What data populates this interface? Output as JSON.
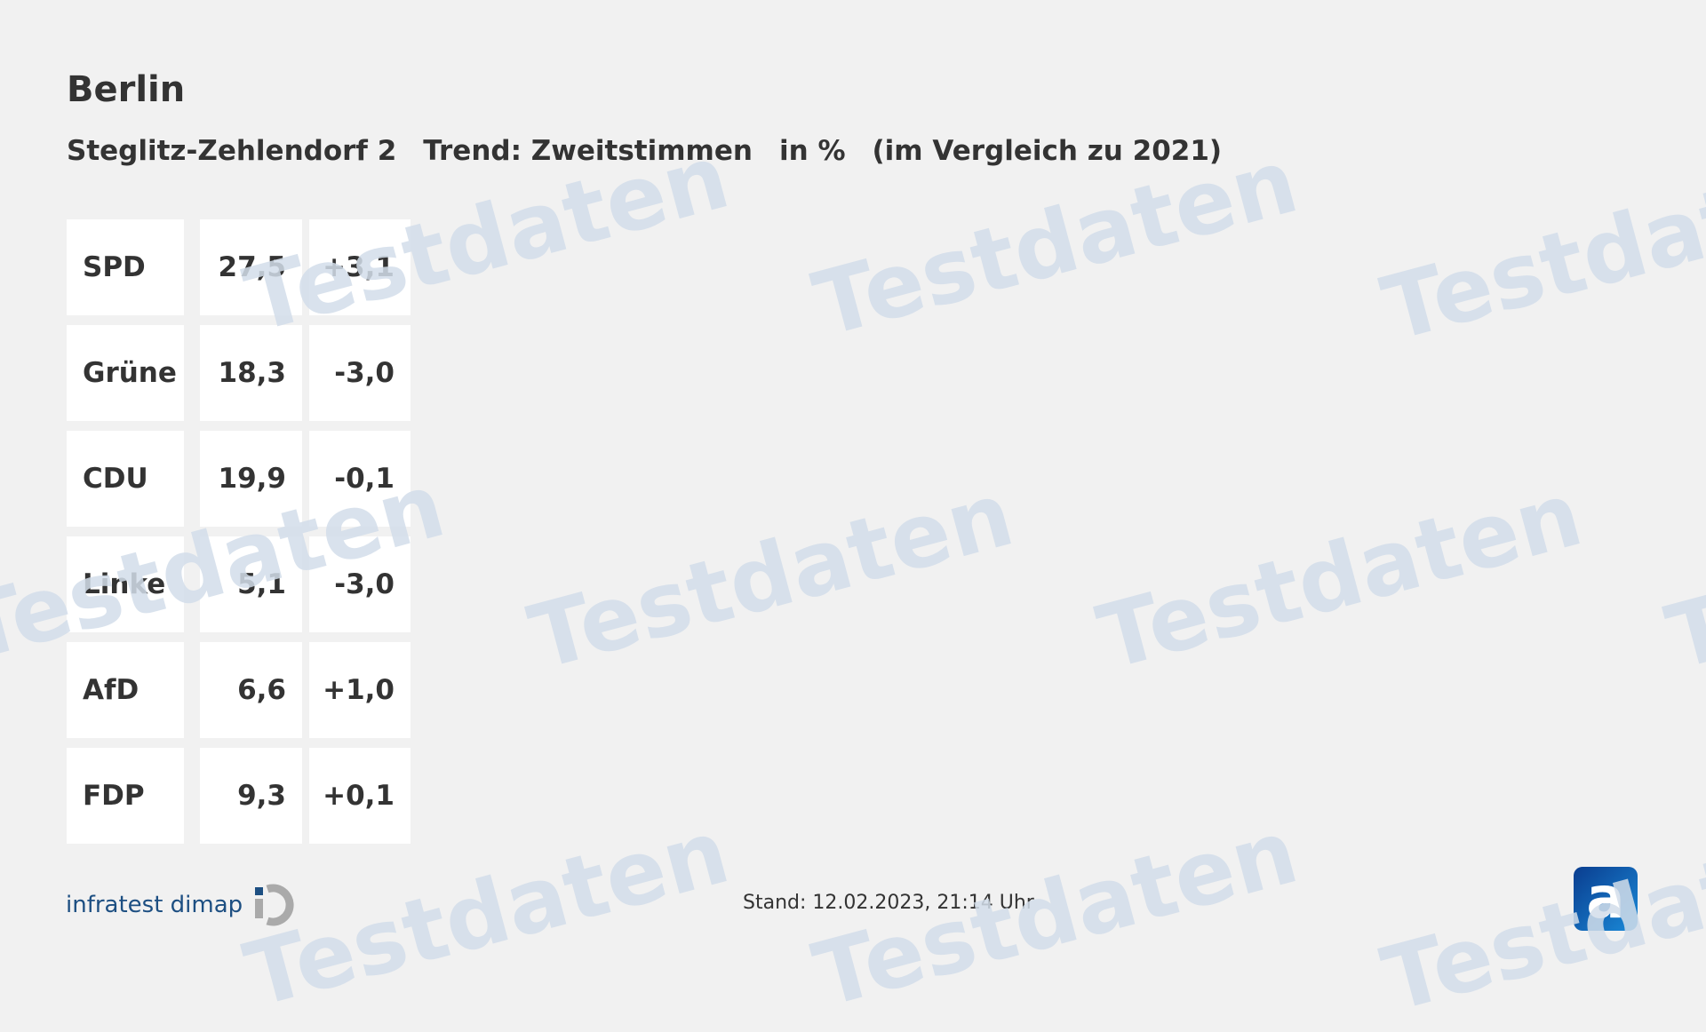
{
  "header": {
    "title": "Berlin",
    "subtitle_parts": [
      "Steglitz-Zehlendorf 2",
      "Trend: Zweitstimmen",
      "in %",
      "(im Vergleich zu 2021)"
    ]
  },
  "table": {
    "rows": [
      {
        "party": "SPD",
        "value": "27,5",
        "change": "+3,1"
      },
      {
        "party": "Grüne",
        "value": "18,3",
        "change": "-3,0"
      },
      {
        "party": "CDU",
        "value": "19,9",
        "change": "-0,1"
      },
      {
        "party": "Linke",
        "value": "5,1",
        "change": "-3,0"
      },
      {
        "party": "AfD",
        "value": "6,6",
        "change": "+1,0"
      },
      {
        "party": "FDP",
        "value": "9,3",
        "change": "+0,1"
      }
    ]
  },
  "watermark": "Testdaten",
  "footer": {
    "brand": "infratest dimap",
    "stand": "Stand:  12.02.2023, 21:14 Uhr",
    "ard_logo": "a",
    "brand_color": "#1d4f82"
  }
}
